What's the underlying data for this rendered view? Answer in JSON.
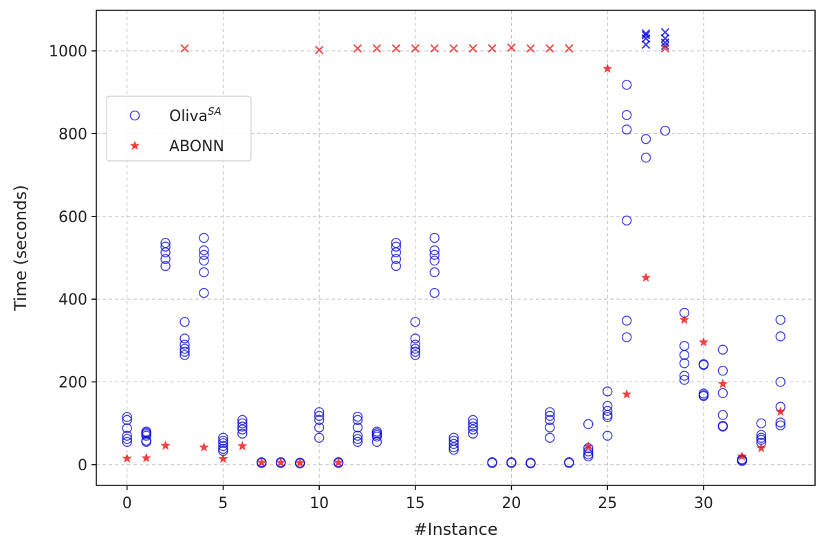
{
  "chart_data": {
    "type": "scatter",
    "xlabel": "#Instance",
    "ylabel": "Time (seconds)",
    "xlim": [
      -1.6,
      35.8
    ],
    "ylim": [
      -50,
      1098
    ],
    "xticks": [
      0,
      5,
      10,
      15,
      20,
      25,
      30
    ],
    "xtick_labels": [
      "0",
      "5",
      "10",
      "15",
      "20",
      "25",
      "30"
    ],
    "yticks": [
      0,
      200,
      400,
      600,
      800,
      1000
    ],
    "ytick_labels": [
      "0",
      "200",
      "400",
      "600",
      "800",
      "1000"
    ],
    "grid": true,
    "legend_placement": "center-left",
    "series": [
      {
        "name": "Oliva",
        "name_superscript": "SA",
        "marker": "open-circle",
        "color": "#0000dd",
        "points": [
          [
            0,
            115
          ],
          [
            0,
            108
          ],
          [
            0,
            88
          ],
          [
            0,
            70
          ],
          [
            0,
            62
          ],
          [
            0,
            55
          ],
          [
            1,
            80
          ],
          [
            1,
            77
          ],
          [
            1,
            74
          ],
          [
            1,
            70
          ],
          [
            1,
            58
          ],
          [
            1,
            55
          ],
          [
            2,
            536
          ],
          [
            2,
            527
          ],
          [
            2,
            513
          ],
          [
            2,
            497
          ],
          [
            2,
            480
          ],
          [
            3,
            345
          ],
          [
            3,
            305
          ],
          [
            3,
            290
          ],
          [
            3,
            280
          ],
          [
            3,
            273
          ],
          [
            3,
            265
          ],
          [
            4,
            548
          ],
          [
            4,
            518
          ],
          [
            4,
            507
          ],
          [
            4,
            493
          ],
          [
            4,
            465
          ],
          [
            4,
            415
          ],
          [
            5,
            65
          ],
          [
            5,
            58
          ],
          [
            5,
            52
          ],
          [
            5,
            45
          ],
          [
            5,
            38
          ],
          [
            5,
            33
          ],
          [
            6,
            108
          ],
          [
            6,
            100
          ],
          [
            6,
            92
          ],
          [
            6,
            85
          ],
          [
            6,
            75
          ],
          [
            7,
            6
          ],
          [
            7,
            4
          ],
          [
            8,
            6
          ],
          [
            8,
            4
          ],
          [
            9,
            5
          ],
          [
            9,
            3
          ],
          [
            10,
            127
          ],
          [
            10,
            118
          ],
          [
            10,
            108
          ],
          [
            10,
            90
          ],
          [
            10,
            65
          ],
          [
            11,
            6
          ],
          [
            11,
            4
          ],
          [
            12,
            116
          ],
          [
            12,
            108
          ],
          [
            12,
            90
          ],
          [
            12,
            70
          ],
          [
            12,
            62
          ],
          [
            12,
            55
          ],
          [
            13,
            80
          ],
          [
            13,
            76
          ],
          [
            13,
            72
          ],
          [
            13,
            68
          ],
          [
            13,
            55
          ],
          [
            14,
            536
          ],
          [
            14,
            527
          ],
          [
            14,
            513
          ],
          [
            14,
            497
          ],
          [
            14,
            480
          ],
          [
            15,
            345
          ],
          [
            15,
            305
          ],
          [
            15,
            290
          ],
          [
            15,
            280
          ],
          [
            15,
            273
          ],
          [
            15,
            265
          ],
          [
            16,
            548
          ],
          [
            16,
            518
          ],
          [
            16,
            507
          ],
          [
            16,
            493
          ],
          [
            16,
            465
          ],
          [
            16,
            415
          ],
          [
            17,
            65
          ],
          [
            17,
            58
          ],
          [
            17,
            50
          ],
          [
            17,
            42
          ],
          [
            17,
            36
          ],
          [
            18,
            108
          ],
          [
            18,
            100
          ],
          [
            18,
            92
          ],
          [
            18,
            85
          ],
          [
            18,
            75
          ],
          [
            19,
            6
          ],
          [
            19,
            4
          ],
          [
            20,
            6
          ],
          [
            20,
            4
          ],
          [
            21,
            5
          ],
          [
            21,
            3
          ],
          [
            22,
            127
          ],
          [
            22,
            118
          ],
          [
            22,
            108
          ],
          [
            22,
            90
          ],
          [
            22,
            65
          ],
          [
            23,
            6
          ],
          [
            23,
            4
          ],
          [
            24,
            98
          ],
          [
            24,
            40
          ],
          [
            24,
            32
          ],
          [
            24,
            25
          ],
          [
            24,
            20
          ],
          [
            25,
            177
          ],
          [
            25,
            142
          ],
          [
            25,
            130
          ],
          [
            25,
            120
          ],
          [
            25,
            115
          ],
          [
            25,
            70
          ],
          [
            26,
            918
          ],
          [
            26,
            845
          ],
          [
            26,
            810
          ],
          [
            26,
            590
          ],
          [
            26,
            348
          ],
          [
            26,
            308
          ],
          [
            27,
            787
          ],
          [
            27,
            742
          ],
          [
            28,
            807
          ],
          [
            29,
            367
          ],
          [
            29,
            287
          ],
          [
            29,
            265
          ],
          [
            29,
            245
          ],
          [
            29,
            215
          ],
          [
            29,
            205
          ],
          [
            30,
            243
          ],
          [
            30,
            241
          ],
          [
            30,
            172
          ],
          [
            30,
            168
          ],
          [
            30,
            166
          ],
          [
            31,
            278
          ],
          [
            31,
            227
          ],
          [
            31,
            173
          ],
          [
            31,
            120
          ],
          [
            31,
            94
          ],
          [
            31,
            92
          ],
          [
            32,
            13
          ],
          [
            32,
            11
          ],
          [
            32,
            9
          ],
          [
            33,
            100
          ],
          [
            33,
            72
          ],
          [
            33,
            65
          ],
          [
            33,
            60
          ],
          [
            33,
            53
          ],
          [
            34,
            350
          ],
          [
            34,
            310
          ],
          [
            34,
            200
          ],
          [
            34,
            140
          ],
          [
            34,
            102
          ],
          [
            34,
            95
          ]
        ],
        "timeouts": [
          [
            27,
            1042
          ],
          [
            27,
            1038
          ],
          [
            27,
            1030
          ],
          [
            27,
            1015
          ],
          [
            28,
            1045
          ],
          [
            28,
            1030
          ],
          [
            28,
            1020
          ],
          [
            28,
            1012
          ]
        ]
      },
      {
        "name": "ABONN",
        "marker": "star",
        "color": "#ee1111",
        "points": [
          [
            0,
            15
          ],
          [
            1,
            16
          ],
          [
            2,
            46
          ],
          [
            4,
            42
          ],
          [
            5,
            14
          ],
          [
            6,
            45
          ],
          [
            7,
            5
          ],
          [
            8,
            5
          ],
          [
            9,
            4
          ],
          [
            11,
            5
          ],
          [
            24,
            44
          ],
          [
            25,
            957
          ],
          [
            26,
            170
          ],
          [
            27,
            452
          ],
          [
            29,
            350
          ],
          [
            30,
            296
          ],
          [
            31,
            195
          ],
          [
            32,
            20
          ],
          [
            33,
            40
          ],
          [
            34,
            128
          ]
        ],
        "timeouts": [
          [
            3,
            1006
          ],
          [
            10,
            1002
          ],
          [
            12,
            1006
          ],
          [
            13,
            1006
          ],
          [
            14,
            1006
          ],
          [
            15,
            1006
          ],
          [
            16,
            1006
          ],
          [
            17,
            1006
          ],
          [
            18,
            1006
          ],
          [
            19,
            1006
          ],
          [
            20,
            1008
          ],
          [
            21,
            1006
          ],
          [
            22,
            1006
          ],
          [
            23,
            1006
          ],
          [
            28,
            1006
          ]
        ]
      }
    ]
  }
}
